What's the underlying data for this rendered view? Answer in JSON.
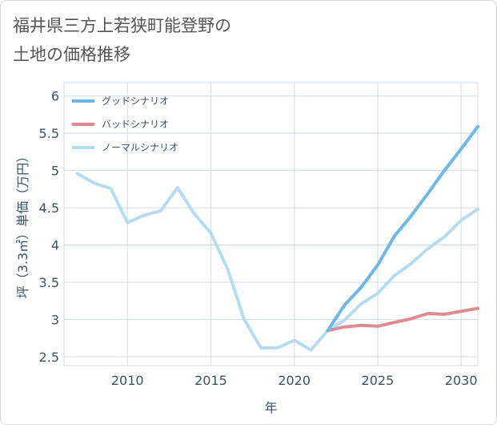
{
  "title_lines": [
    "福井県三方上若狭町能登野の",
    "土地の価格推移"
  ],
  "chart_data": {
    "type": "line",
    "xlabel": "年",
    "ylabel": "坪（3.3㎡）単価（万円）",
    "xlim": [
      2006.2,
      2031
    ],
    "ylim": [
      2.38,
      6.18
    ],
    "xticks": [
      2010,
      2015,
      2020,
      2025,
      2030
    ],
    "yticks": [
      2.5,
      3,
      3.5,
      4,
      4.5,
      5,
      5.5,
      6
    ],
    "ytick_labels": [
      "2.5",
      "3",
      "3.5",
      "4",
      "4.5",
      "5",
      "5.5",
      "6"
    ],
    "grid": true,
    "legend_position": "top-left",
    "series": [
      {
        "name": "グッドシナリオ",
        "color": "#6cb8ea",
        "x": [
          2022,
          2023,
          2024,
          2025,
          2026,
          2027,
          2028,
          2029,
          2030,
          2031
        ],
        "y": [
          2.85,
          3.19,
          3.43,
          3.73,
          4.12,
          4.39,
          4.69,
          5.0,
          5.29,
          5.59
        ]
      },
      {
        "name": "バッドシナリオ",
        "color": "#de8a96",
        "x": [
          2022,
          2023,
          2024,
          2025,
          2026,
          2027,
          2028,
          2029,
          2030,
          2031
        ],
        "y": [
          2.85,
          2.9,
          2.92,
          2.91,
          2.96,
          3.01,
          3.08,
          3.07,
          3.11,
          3.15
        ]
      },
      {
        "name": "ノーマルシナリオ",
        "color": "#b7dcef",
        "x": [
          2007,
          2008,
          2009,
          2010,
          2011,
          2012,
          2013,
          2014,
          2015,
          2016,
          2017,
          2018,
          2019,
          2020,
          2021,
          2022,
          2023,
          2024,
          2025,
          2026,
          2027,
          2028,
          2029,
          2030,
          2031
        ],
        "y": [
          4.96,
          4.83,
          4.76,
          4.3,
          4.4,
          4.46,
          4.77,
          4.42,
          4.16,
          3.68,
          3.0,
          2.62,
          2.62,
          2.72,
          2.59,
          2.85,
          2.99,
          3.21,
          3.35,
          3.59,
          3.75,
          3.95,
          4.11,
          4.33,
          4.48
        ]
      }
    ]
  }
}
